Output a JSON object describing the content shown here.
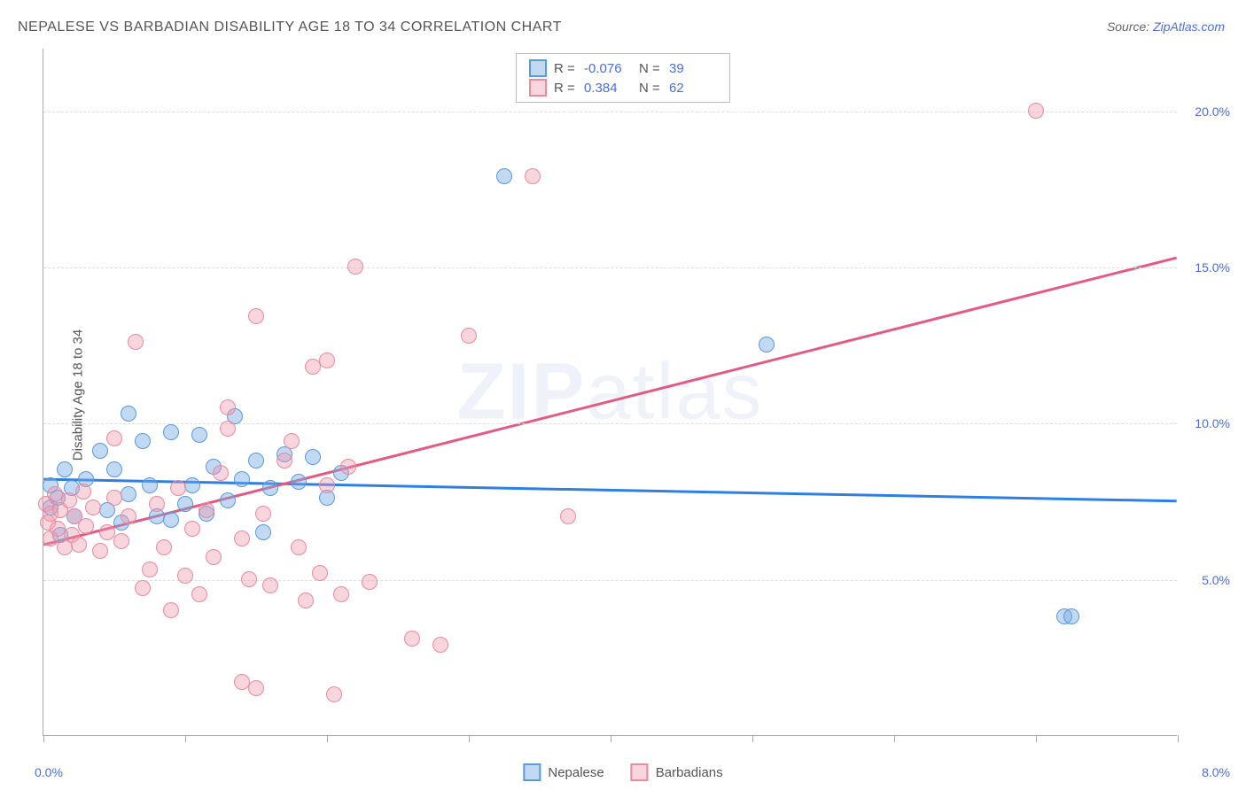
{
  "title": "NEPALESE VS BARBADIAN DISABILITY AGE 18 TO 34 CORRELATION CHART",
  "source_label": "Source:",
  "source_link": "ZipAtlas.com",
  "y_axis_title": "Disability Age 18 to 34",
  "watermark": {
    "bold": "ZIP",
    "rest": "atlas"
  },
  "chart": {
    "type": "scatter",
    "background_color": "#ffffff",
    "grid_color": "#dddddd",
    "axis_color": "#aaaaaa",
    "text_color": "#555555",
    "value_color": "#4a6fd8",
    "xlim": [
      0,
      8
    ],
    "ylim": [
      0,
      22
    ],
    "y_ticks": [
      5,
      10,
      15,
      20
    ],
    "y_tick_labels": [
      "5.0%",
      "10.0%",
      "15.0%",
      "20.0%"
    ],
    "x_ticks": [
      0,
      1,
      2,
      3,
      4,
      5,
      6,
      7,
      8
    ],
    "x_left_label": "0.0%",
    "x_right_label": "8.0%",
    "marker_size": 18,
    "series": [
      {
        "name": "Nepalese",
        "fill": "rgba(120,170,230,0.45)",
        "stroke": "#5a9ad8",
        "R": "-0.076",
        "N": "39",
        "trend": {
          "x1": 0,
          "y1": 8.2,
          "x2": 8,
          "y2": 7.5,
          "color": "#2f7fe0",
          "width": 3
        },
        "points": [
          [
            0.05,
            8.0
          ],
          [
            0.05,
            7.3
          ],
          [
            0.1,
            7.6
          ],
          [
            0.12,
            6.4
          ],
          [
            0.15,
            8.5
          ],
          [
            0.2,
            7.9
          ],
          [
            0.22,
            7.0
          ],
          [
            0.3,
            8.2
          ],
          [
            0.4,
            9.1
          ],
          [
            0.45,
            7.2
          ],
          [
            0.5,
            8.5
          ],
          [
            0.55,
            6.8
          ],
          [
            0.6,
            10.3
          ],
          [
            0.6,
            7.7
          ],
          [
            0.7,
            9.4
          ],
          [
            0.75,
            8.0
          ],
          [
            0.8,
            7.0
          ],
          [
            0.9,
            9.7
          ],
          [
            0.9,
            6.9
          ],
          [
            1.0,
            7.4
          ],
          [
            1.05,
            8.0
          ],
          [
            1.1,
            9.6
          ],
          [
            1.15,
            7.1
          ],
          [
            1.2,
            8.6
          ],
          [
            1.3,
            7.5
          ],
          [
            1.35,
            10.2
          ],
          [
            1.4,
            8.2
          ],
          [
            1.5,
            8.8
          ],
          [
            1.55,
            6.5
          ],
          [
            1.6,
            7.9
          ],
          [
            1.7,
            9.0
          ],
          [
            1.8,
            8.1
          ],
          [
            1.9,
            8.9
          ],
          [
            2.0,
            7.6
          ],
          [
            2.1,
            8.4
          ],
          [
            3.25,
            17.9
          ],
          [
            5.1,
            12.5
          ],
          [
            7.2,
            3.8
          ],
          [
            7.25,
            3.8
          ]
        ]
      },
      {
        "name": "Barbadians",
        "fill": "rgba(240,150,170,0.4)",
        "stroke": "#e88aa0",
        "R": "0.384",
        "N": "62",
        "trend": {
          "x1": 0,
          "y1": 6.1,
          "x2": 8,
          "y2": 15.3,
          "color": "#e35b82",
          "width": 3
        },
        "points": [
          [
            0.02,
            7.4
          ],
          [
            0.03,
            6.8
          ],
          [
            0.05,
            7.1
          ],
          [
            0.05,
            6.3
          ],
          [
            0.08,
            7.7
          ],
          [
            0.1,
            6.6
          ],
          [
            0.12,
            7.2
          ],
          [
            0.15,
            6.0
          ],
          [
            0.18,
            7.5
          ],
          [
            0.2,
            6.4
          ],
          [
            0.22,
            7.0
          ],
          [
            0.25,
            6.1
          ],
          [
            0.28,
            7.8
          ],
          [
            0.3,
            6.7
          ],
          [
            0.35,
            7.3
          ],
          [
            0.4,
            5.9
          ],
          [
            0.45,
            6.5
          ],
          [
            0.5,
            7.6
          ],
          [
            0.5,
            9.5
          ],
          [
            0.55,
            6.2
          ],
          [
            0.6,
            7.0
          ],
          [
            0.65,
            12.6
          ],
          [
            0.7,
            4.7
          ],
          [
            0.75,
            5.3
          ],
          [
            0.8,
            7.4
          ],
          [
            0.85,
            6.0
          ],
          [
            0.9,
            4.0
          ],
          [
            0.95,
            7.9
          ],
          [
            1.0,
            5.1
          ],
          [
            1.05,
            6.6
          ],
          [
            1.1,
            4.5
          ],
          [
            1.15,
            7.2
          ],
          [
            1.2,
            5.7
          ],
          [
            1.25,
            8.4
          ],
          [
            1.3,
            10.5
          ],
          [
            1.3,
            9.8
          ],
          [
            1.4,
            6.3
          ],
          [
            1.4,
            1.7
          ],
          [
            1.45,
            5.0
          ],
          [
            1.5,
            13.4
          ],
          [
            1.5,
            1.5
          ],
          [
            1.55,
            7.1
          ],
          [
            1.6,
            4.8
          ],
          [
            1.7,
            8.8
          ],
          [
            1.75,
            9.4
          ],
          [
            1.8,
            6.0
          ],
          [
            1.85,
            4.3
          ],
          [
            1.9,
            11.8
          ],
          [
            1.95,
            5.2
          ],
          [
            2.0,
            8.0
          ],
          [
            2.0,
            12.0
          ],
          [
            2.05,
            1.3
          ],
          [
            2.1,
            4.5
          ],
          [
            2.15,
            8.6
          ],
          [
            2.2,
            15.0
          ],
          [
            2.3,
            4.9
          ],
          [
            2.6,
            3.1
          ],
          [
            2.8,
            2.9
          ],
          [
            3.0,
            12.8
          ],
          [
            3.45,
            17.9
          ],
          [
            3.7,
            7.0
          ],
          [
            7.0,
            20.0
          ]
        ]
      }
    ]
  },
  "legend": {
    "series1": "Nepalese",
    "series2": "Barbadians"
  },
  "stats_labels": {
    "R": "R =",
    "N": "N ="
  }
}
